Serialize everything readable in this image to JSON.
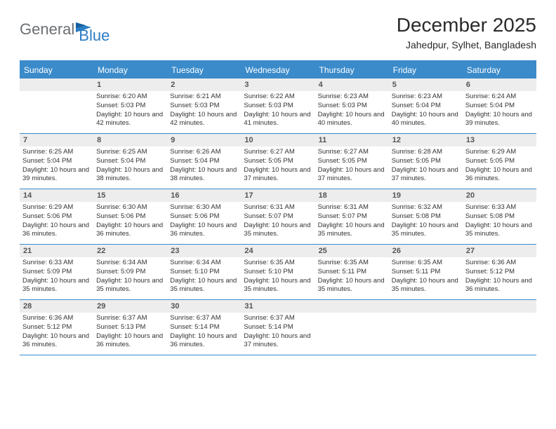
{
  "logo": {
    "text1": "General",
    "text2": "Blue"
  },
  "title": "December 2025",
  "subtitle": "Jahedpur, Sylhet, Bangladesh",
  "colors": {
    "brand_blue": "#3b8bca",
    "logo_blue": "#2b7dc4",
    "logo_gray": "#6a6f73",
    "header_bg": "#ededed",
    "text": "#333333",
    "background": "#ffffff"
  },
  "layout": {
    "week_row_border": "1px solid #3b8bca",
    "calendar_top_border": "2px solid #3b8bca"
  },
  "dayHeaders": [
    "Sunday",
    "Monday",
    "Tuesday",
    "Wednesday",
    "Thursday",
    "Friday",
    "Saturday"
  ],
  "weeks": [
    [
      {
        "num": "",
        "lines": []
      },
      {
        "num": "1",
        "lines": [
          "Sunrise: 6:20 AM",
          "Sunset: 5:03 PM",
          "Daylight: 10 hours and 42 minutes."
        ]
      },
      {
        "num": "2",
        "lines": [
          "Sunrise: 6:21 AM",
          "Sunset: 5:03 PM",
          "Daylight: 10 hours and 42 minutes."
        ]
      },
      {
        "num": "3",
        "lines": [
          "Sunrise: 6:22 AM",
          "Sunset: 5:03 PM",
          "Daylight: 10 hours and 41 minutes."
        ]
      },
      {
        "num": "4",
        "lines": [
          "Sunrise: 6:23 AM",
          "Sunset: 5:03 PM",
          "Daylight: 10 hours and 40 minutes."
        ]
      },
      {
        "num": "5",
        "lines": [
          "Sunrise: 6:23 AM",
          "Sunset: 5:04 PM",
          "Daylight: 10 hours and 40 minutes."
        ]
      },
      {
        "num": "6",
        "lines": [
          "Sunrise: 6:24 AM",
          "Sunset: 5:04 PM",
          "Daylight: 10 hours and 39 minutes."
        ]
      }
    ],
    [
      {
        "num": "7",
        "lines": [
          "Sunrise: 6:25 AM",
          "Sunset: 5:04 PM",
          "Daylight: 10 hours and 39 minutes."
        ]
      },
      {
        "num": "8",
        "lines": [
          "Sunrise: 6:25 AM",
          "Sunset: 5:04 PM",
          "Daylight: 10 hours and 38 minutes."
        ]
      },
      {
        "num": "9",
        "lines": [
          "Sunrise: 6:26 AM",
          "Sunset: 5:04 PM",
          "Daylight: 10 hours and 38 minutes."
        ]
      },
      {
        "num": "10",
        "lines": [
          "Sunrise: 6:27 AM",
          "Sunset: 5:05 PM",
          "Daylight: 10 hours and 37 minutes."
        ]
      },
      {
        "num": "11",
        "lines": [
          "Sunrise: 6:27 AM",
          "Sunset: 5:05 PM",
          "Daylight: 10 hours and 37 minutes."
        ]
      },
      {
        "num": "12",
        "lines": [
          "Sunrise: 6:28 AM",
          "Sunset: 5:05 PM",
          "Daylight: 10 hours and 37 minutes."
        ]
      },
      {
        "num": "13",
        "lines": [
          "Sunrise: 6:29 AM",
          "Sunset: 5:05 PM",
          "Daylight: 10 hours and 36 minutes."
        ]
      }
    ],
    [
      {
        "num": "14",
        "lines": [
          "Sunrise: 6:29 AM",
          "Sunset: 5:06 PM",
          "Daylight: 10 hours and 36 minutes."
        ]
      },
      {
        "num": "15",
        "lines": [
          "Sunrise: 6:30 AM",
          "Sunset: 5:06 PM",
          "Daylight: 10 hours and 36 minutes."
        ]
      },
      {
        "num": "16",
        "lines": [
          "Sunrise: 6:30 AM",
          "Sunset: 5:06 PM",
          "Daylight: 10 hours and 36 minutes."
        ]
      },
      {
        "num": "17",
        "lines": [
          "Sunrise: 6:31 AM",
          "Sunset: 5:07 PM",
          "Daylight: 10 hours and 35 minutes."
        ]
      },
      {
        "num": "18",
        "lines": [
          "Sunrise: 6:31 AM",
          "Sunset: 5:07 PM",
          "Daylight: 10 hours and 35 minutes."
        ]
      },
      {
        "num": "19",
        "lines": [
          "Sunrise: 6:32 AM",
          "Sunset: 5:08 PM",
          "Daylight: 10 hours and 35 minutes."
        ]
      },
      {
        "num": "20",
        "lines": [
          "Sunrise: 6:33 AM",
          "Sunset: 5:08 PM",
          "Daylight: 10 hours and 35 minutes."
        ]
      }
    ],
    [
      {
        "num": "21",
        "lines": [
          "Sunrise: 6:33 AM",
          "Sunset: 5:09 PM",
          "Daylight: 10 hours and 35 minutes."
        ]
      },
      {
        "num": "22",
        "lines": [
          "Sunrise: 6:34 AM",
          "Sunset: 5:09 PM",
          "Daylight: 10 hours and 35 minutes."
        ]
      },
      {
        "num": "23",
        "lines": [
          "Sunrise: 6:34 AM",
          "Sunset: 5:10 PM",
          "Daylight: 10 hours and 35 minutes."
        ]
      },
      {
        "num": "24",
        "lines": [
          "Sunrise: 6:35 AM",
          "Sunset: 5:10 PM",
          "Daylight: 10 hours and 35 minutes."
        ]
      },
      {
        "num": "25",
        "lines": [
          "Sunrise: 6:35 AM",
          "Sunset: 5:11 PM",
          "Daylight: 10 hours and 35 minutes."
        ]
      },
      {
        "num": "26",
        "lines": [
          "Sunrise: 6:35 AM",
          "Sunset: 5:11 PM",
          "Daylight: 10 hours and 35 minutes."
        ]
      },
      {
        "num": "27",
        "lines": [
          "Sunrise: 6:36 AM",
          "Sunset: 5:12 PM",
          "Daylight: 10 hours and 36 minutes."
        ]
      }
    ],
    [
      {
        "num": "28",
        "lines": [
          "Sunrise: 6:36 AM",
          "Sunset: 5:12 PM",
          "Daylight: 10 hours and 36 minutes."
        ]
      },
      {
        "num": "29",
        "lines": [
          "Sunrise: 6:37 AM",
          "Sunset: 5:13 PM",
          "Daylight: 10 hours and 36 minutes."
        ]
      },
      {
        "num": "30",
        "lines": [
          "Sunrise: 6:37 AM",
          "Sunset: 5:14 PM",
          "Daylight: 10 hours and 36 minutes."
        ]
      },
      {
        "num": "31",
        "lines": [
          "Sunrise: 6:37 AM",
          "Sunset: 5:14 PM",
          "Daylight: 10 hours and 37 minutes."
        ]
      },
      {
        "num": "",
        "lines": []
      },
      {
        "num": "",
        "lines": []
      },
      {
        "num": "",
        "lines": []
      }
    ]
  ]
}
